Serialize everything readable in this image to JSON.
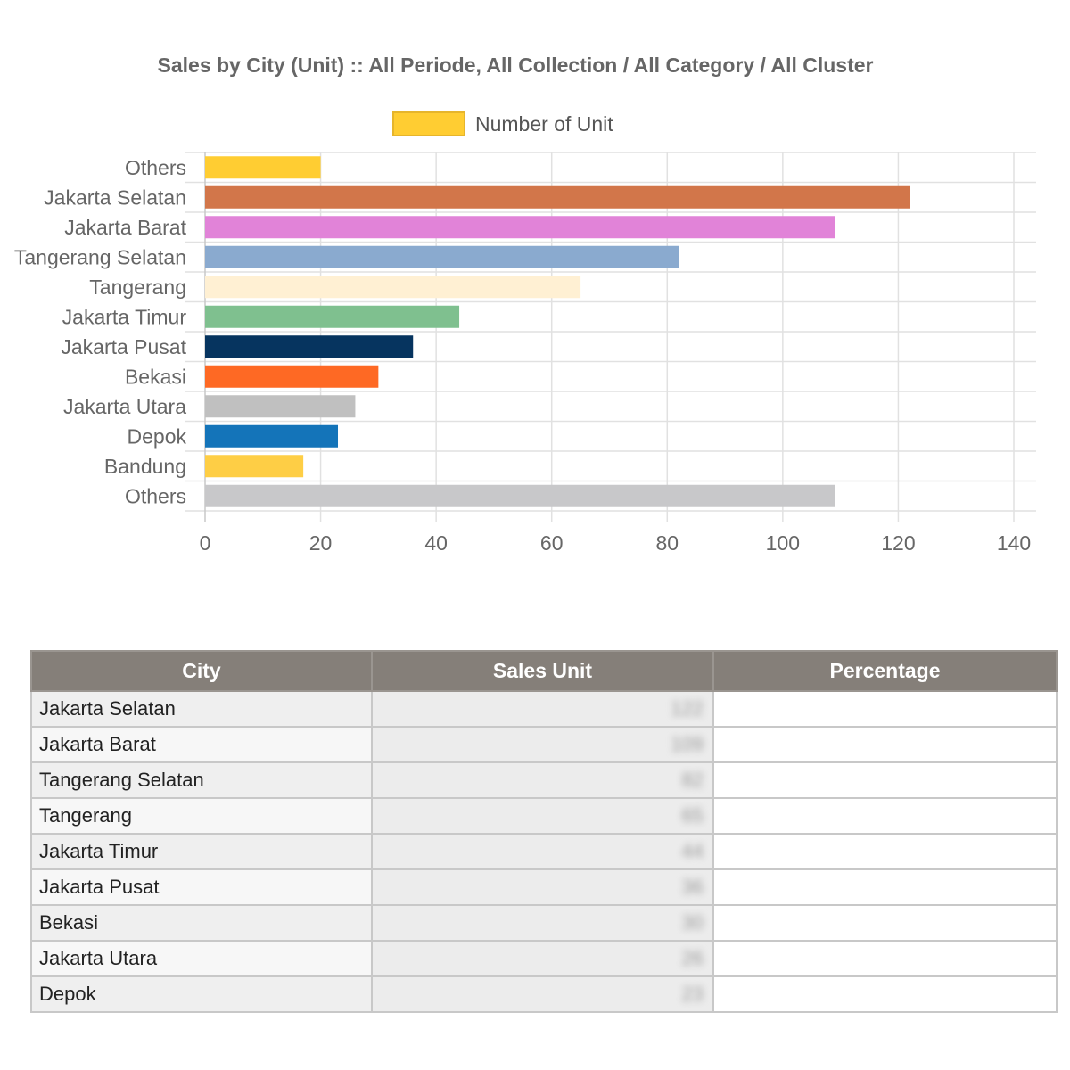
{
  "chart_data": {
    "type": "bar",
    "orientation": "horizontal",
    "title": "Sales by City (Unit) :: All Periode, All Collection / All Category / All Cluster",
    "legend": {
      "label": "Number of Unit",
      "color": "#ffcd32",
      "position": "top"
    },
    "categories": [
      "Others",
      "Jakarta Selatan",
      "Jakarta Barat",
      "Tangerang Selatan",
      "Tangerang",
      "Jakarta Timur",
      "Jakarta Pusat",
      "Bekasi",
      "Jakarta Utara",
      "Depok",
      "Bandung",
      "Others"
    ],
    "values": [
      20,
      122,
      109,
      82,
      65,
      44,
      36,
      30,
      26,
      23,
      17,
      109
    ],
    "colors": [
      "#ffcd32",
      "#d2764a",
      "#e183d8",
      "#8aaacf",
      "#fff0d3",
      "#7fc08f",
      "#06345f",
      "#fe6924",
      "#c0c0c0",
      "#1474b9",
      "#fece45",
      "#c8c8ca"
    ],
    "xlim": [
      0,
      140
    ],
    "xticks": [
      0,
      20,
      40,
      60,
      80,
      100,
      120,
      140
    ],
    "grid": true
  },
  "table": {
    "headers": [
      "City",
      "Sales Unit",
      "Percentage"
    ],
    "rows": [
      {
        "city": "Jakarta Selatan",
        "units": "122"
      },
      {
        "city": "Jakarta Barat",
        "units": "109"
      },
      {
        "city": "Tangerang Selatan",
        "units": "82"
      },
      {
        "city": "Tangerang",
        "units": "65"
      },
      {
        "city": "Jakarta Timur",
        "units": "44"
      },
      {
        "city": "Jakarta Pusat",
        "units": "36"
      },
      {
        "city": "Bekasi",
        "units": "30"
      },
      {
        "city": "Jakarta Utara",
        "units": "26"
      },
      {
        "city": "Depok",
        "units": "23"
      }
    ]
  }
}
